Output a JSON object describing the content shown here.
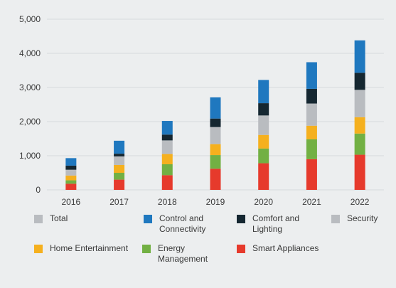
{
  "chart_data": {
    "type": "bar",
    "stacked": true,
    "categories": [
      "2016",
      "2017",
      "2018",
      "2019",
      "2020",
      "2021",
      "2022"
    ],
    "ylim": [
      0,
      5000
    ],
    "yticks": [
      0,
      1000,
      2000,
      3000,
      4000,
      5000
    ],
    "ytick_labels": [
      "0",
      "1,000",
      "2,000",
      "3,000",
      "4,000",
      "5,000"
    ],
    "grid": true,
    "legend_position": "bottom",
    "series": [
      {
        "name": "Smart Appliances",
        "color": "#e63a2c",
        "values": [
          180,
          300,
          430,
          620,
          780,
          900,
          1030
        ]
      },
      {
        "name": "Energy Management",
        "color": "#72b043",
        "values": [
          100,
          200,
          320,
          400,
          430,
          580,
          620
        ]
      },
      {
        "name": "Home Entertainment",
        "color": "#f5b01e",
        "values": [
          140,
          230,
          300,
          320,
          400,
          400,
          480
        ]
      },
      {
        "name": "Security",
        "color": "#b9bcc0",
        "values": [
          170,
          250,
          400,
          500,
          570,
          650,
          800
        ]
      },
      {
        "name": "Comfort and Lighting",
        "color": "#152731",
        "values": [
          120,
          80,
          170,
          250,
          360,
          430,
          500
        ]
      },
      {
        "name": "Control and Connectivity",
        "color": "#1f78bf",
        "values": [
          220,
          380,
          400,
          620,
          680,
          780,
          950
        ]
      }
    ],
    "legend": [
      {
        "label": "Total",
        "color": "#b9bcc0"
      },
      {
        "label": "Control and\nConnectivity",
        "color": "#1f78bf"
      },
      {
        "label": "Comfort and\nLighting",
        "color": "#152731"
      },
      {
        "label": "Security",
        "color": "#b9bcc0"
      },
      {
        "label": "Home Entertainment",
        "color": "#f5b01e"
      },
      {
        "label": "Energy\nManagement",
        "color": "#72b043"
      },
      {
        "label": "Smart Appliances",
        "color": "#e63a2c"
      }
    ]
  }
}
